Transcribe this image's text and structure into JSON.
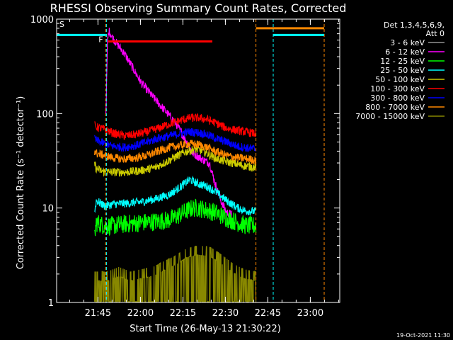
{
  "chart_data": {
    "type": "line",
    "title": "RHESSI Observing Summary Count Rates, Corrected",
    "xlabel": "Start Time (26-May-13 21:30:22)",
    "ylabel": "Corrected Count Rate (s⁻¹ detector⁻¹)",
    "yscale": "log",
    "ylim": [
      1,
      1000
    ],
    "xlim_minutes": [
      0,
      100
    ],
    "x_ticks": [
      {
        "label": "21:45",
        "min": 14.6
      },
      {
        "label": "22:00",
        "min": 29.6
      },
      {
        "label": "22:15",
        "min": 44.6
      },
      {
        "label": "22:30",
        "min": 59.6
      },
      {
        "label": "22:45",
        "min": 74.6
      },
      {
        "label": "23:00",
        "min": 89.6
      }
    ],
    "y_ticks": [
      {
        "label": "1",
        "val": 1
      },
      {
        "label": "10",
        "val": 10
      },
      {
        "label": "100",
        "val": 100
      },
      {
        "label": "1000",
        "val": 1000
      }
    ],
    "legend_header": [
      "Det 1,3,4,5,6,9,",
      "Att 0"
    ],
    "series": [
      {
        "name": "3 - 6 keV",
        "color": "#000000",
        "points": [
          [
            13.3,
            1.5
          ],
          [
            13.4,
            3
          ],
          [
            17.4,
            3
          ],
          [
            17.5,
            100
          ],
          [
            18.2,
            700
          ],
          [
            19.5,
            680
          ],
          [
            22,
            560
          ],
          [
            26,
            420
          ],
          [
            30,
            300
          ],
          [
            34,
            230
          ],
          [
            38,
            150
          ],
          [
            42,
            100
          ],
          [
            46,
            62
          ],
          [
            50,
            38
          ],
          [
            54,
            22
          ],
          [
            58,
            12
          ],
          [
            62,
            8
          ],
          [
            66,
            6.2
          ],
          [
            70.4,
            6
          ]
        ]
      },
      {
        "name": "6 - 12 keV",
        "color": "#ff00ff",
        "points": [
          [
            17.4,
            100
          ],
          [
            18,
            600
          ],
          [
            18.5,
            750
          ],
          [
            20,
            620
          ],
          [
            24,
            430
          ],
          [
            27,
            300
          ],
          [
            30,
            210
          ],
          [
            34,
            150
          ],
          [
            38,
            110
          ],
          [
            42,
            80
          ],
          [
            46,
            50
          ],
          [
            48,
            38
          ],
          [
            50,
            35
          ],
          [
            52,
            32
          ],
          [
            54,
            30
          ],
          [
            56,
            18
          ],
          [
            58,
            12
          ],
          [
            60,
            9
          ],
          [
            62,
            8.5
          ]
        ]
      },
      {
        "name": "12 - 25 keV",
        "color": "#00ff00",
        "points": [
          [
            13.4,
            5
          ],
          [
            14,
            7
          ],
          [
            17,
            6.5
          ],
          [
            20,
            6.5
          ],
          [
            25,
            6.8
          ],
          [
            30,
            7
          ],
          [
            35,
            7.2
          ],
          [
            40,
            7.5
          ],
          [
            45,
            9
          ],
          [
            48,
            10
          ],
          [
            50,
            10
          ],
          [
            53,
            9.5
          ],
          [
            56,
            9
          ],
          [
            60,
            7.8
          ],
          [
            64,
            7
          ],
          [
            67,
            6.5
          ],
          [
            70.4,
            6.5
          ]
        ]
      },
      {
        "name": "25 - 50 keV",
        "color": "#00ffff",
        "points": [
          [
            13.4,
            9
          ],
          [
            14,
            12
          ],
          [
            17,
            10.5
          ],
          [
            20,
            11
          ],
          [
            25,
            11.2
          ],
          [
            30,
            11.6
          ],
          [
            35,
            12.5
          ],
          [
            40,
            14
          ],
          [
            44,
            17
          ],
          [
            47,
            20
          ],
          [
            50,
            18
          ],
          [
            53,
            17
          ],
          [
            56,
            15
          ],
          [
            60,
            12
          ],
          [
            64,
            10
          ],
          [
            67,
            9.3
          ],
          [
            70.4,
            9.2
          ]
        ]
      },
      {
        "name": "50 - 100 keV",
        "color": "#cccc00",
        "points": [
          [
            13.4,
            30
          ],
          [
            14,
            26
          ],
          [
            17,
            24
          ],
          [
            20,
            24
          ],
          [
            25,
            24
          ],
          [
            30,
            25
          ],
          [
            35,
            27
          ],
          [
            38,
            30
          ],
          [
            42,
            35
          ],
          [
            46,
            40
          ],
          [
            49,
            42
          ],
          [
            52,
            40
          ],
          [
            55,
            35
          ],
          [
            58,
            32
          ],
          [
            62,
            30
          ],
          [
            66,
            28
          ],
          [
            70.4,
            27
          ]
        ]
      },
      {
        "name": "100 - 300 keV",
        "color": "#ff0000",
        "points": [
          [
            13.4,
            75
          ],
          [
            14,
            72
          ],
          [
            17,
            68
          ],
          [
            20,
            62
          ],
          [
            24,
            58
          ],
          [
            28,
            60
          ],
          [
            32,
            64
          ],
          [
            36,
            70
          ],
          [
            40,
            78
          ],
          [
            44,
            85
          ],
          [
            47,
            90
          ],
          [
            50,
            90
          ],
          [
            53,
            87
          ],
          [
            56,
            80
          ],
          [
            60,
            70
          ],
          [
            64,
            66
          ],
          [
            68,
            63
          ],
          [
            70.4,
            61
          ]
        ]
      },
      {
        "name": "300 - 800 keV",
        "color": "#0000ff",
        "points": [
          [
            13.4,
            55
          ],
          [
            14,
            52
          ],
          [
            17,
            48
          ],
          [
            20,
            45
          ],
          [
            24,
            44
          ],
          [
            28,
            46
          ],
          [
            32,
            50
          ],
          [
            36,
            55
          ],
          [
            40,
            58
          ],
          [
            44,
            62
          ],
          [
            47,
            64
          ],
          [
            50,
            63
          ],
          [
            53,
            60
          ],
          [
            56,
            55
          ],
          [
            60,
            50
          ],
          [
            64,
            45
          ],
          [
            68,
            43
          ],
          [
            70.4,
            42
          ]
        ]
      },
      {
        "name": "800 - 7000 keV",
        "color": "#ff8800",
        "points": [
          [
            13.4,
            40
          ],
          [
            14,
            38
          ],
          [
            17,
            36
          ],
          [
            20,
            34
          ],
          [
            24,
            33
          ],
          [
            28,
            34
          ],
          [
            32,
            36
          ],
          [
            36,
            40
          ],
          [
            40,
            44
          ],
          [
            44,
            46
          ],
          [
            47,
            48
          ],
          [
            50,
            47
          ],
          [
            53,
            44
          ],
          [
            56,
            40
          ],
          [
            60,
            36
          ],
          [
            64,
            34
          ],
          [
            68,
            33
          ],
          [
            70.4,
            32
          ]
        ]
      },
      {
        "name": "7000 - 15000 keV",
        "color": "#888800",
        "points": [
          [
            13.4,
            1.7
          ],
          [
            18,
            1.7
          ],
          [
            22,
            1.9
          ],
          [
            26,
            1.7
          ],
          [
            30,
            1.8
          ],
          [
            34,
            1.9
          ],
          [
            38,
            2.2
          ],
          [
            42,
            2.5
          ],
          [
            46,
            3.0
          ],
          [
            50,
            3.2
          ],
          [
            54,
            3.1
          ],
          [
            58,
            2.6
          ],
          [
            62,
            2.1
          ],
          [
            66,
            1.8
          ],
          [
            70.4,
            1.7
          ]
        ]
      }
    ],
    "attenuator_bars": [
      {
        "color": "#00ffff",
        "val": 680,
        "from": 0,
        "to": 17.4
      },
      {
        "color": "#00ffff",
        "val": 680,
        "from": 76.5,
        "to": 94.5
      },
      {
        "color": "#ff8800",
        "val": 800,
        "from": 70.4,
        "to": 94.5
      }
    ],
    "flare_bar": {
      "color": "#ff0000",
      "val": 580,
      "from": 18.2,
      "to": 55
    },
    "vertical_markers": [
      {
        "color": "#00ffff",
        "min": 0
      },
      {
        "color": "#00ffff",
        "min": 17.6
      },
      {
        "color": "#ff8800",
        "min": 17.3
      },
      {
        "color": "#ff8800",
        "min": 70.4
      },
      {
        "color": "#00ffff",
        "min": 76.5
      },
      {
        "color": "#ff8800",
        "min": 94.5
      }
    ],
    "annotations": [
      {
        "text": "S",
        "color": "#ff8800",
        "min": 1.0,
        "val": 830
      },
      {
        "text": "F",
        "color": "#ff0000",
        "min": 14.8,
        "val": 570
      }
    ],
    "footer_date": "19-Oct-2021 11:30"
  }
}
